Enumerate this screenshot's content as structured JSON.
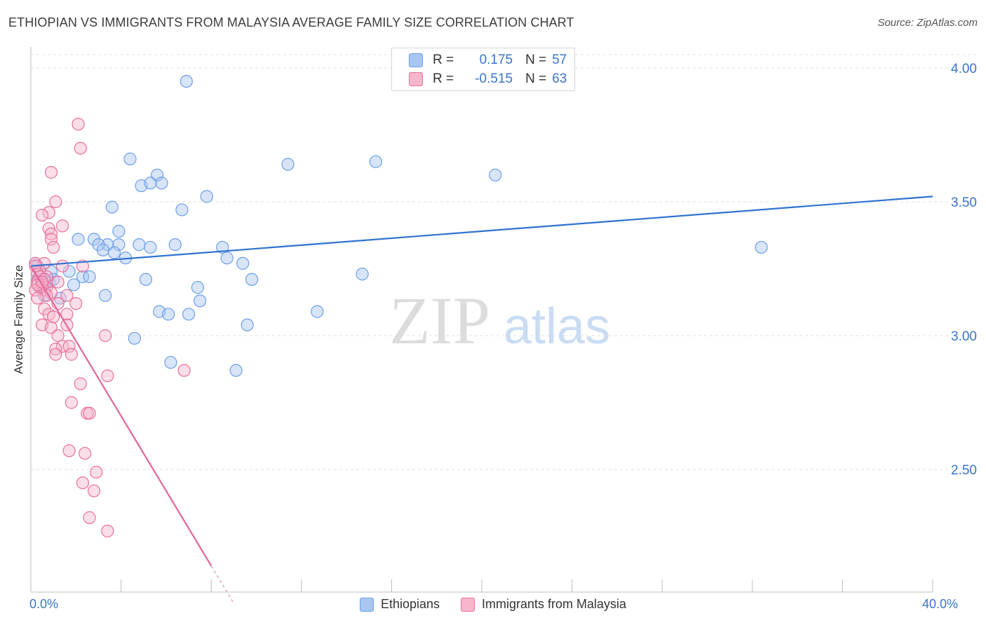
{
  "header": {
    "title": "ETHIOPIAN VS IMMIGRANTS FROM MALAYSIA AVERAGE FAMILY SIZE CORRELATION CHART",
    "source": "Source: ZipAtlas.com"
  },
  "watermark": {
    "zip": "ZIP",
    "atlas": "atlas"
  },
  "stats_box": {
    "rows": [
      {
        "r_label": "R =",
        "r_value": "0.175",
        "n_label": "N =",
        "n_value": "57",
        "color": "#6b9ee8"
      },
      {
        "r_label": "R =",
        "r_value": "-0.515",
        "n_label": "N =",
        "n_value": "63",
        "color": "#f08aaa"
      }
    ]
  },
  "chart_data": {
    "type": "scatter",
    "title": "ETHIOPIAN VS IMMIGRANTS FROM MALAYSIA AVERAGE FAMILY SIZE CORRELATION CHART",
    "xlabel": "",
    "ylabel": "Average Family Size",
    "xlim": [
      0,
      40
    ],
    "ylim": [
      2.0,
      4.1
    ],
    "x_tick_labels": [
      "0.0%",
      "40.0%"
    ],
    "y_ticks": [
      2.5,
      3.0,
      3.5,
      4.0
    ],
    "y_tick_labels": [
      "2.50",
      "3.00",
      "3.50",
      "4.00"
    ],
    "grid": true,
    "legend": "bottom",
    "series": [
      {
        "name": "Ethiopians",
        "color": "#6b9ee8",
        "fill": "#a9c6f2",
        "trend": {
          "x": [
            0.0,
            40.0
          ],
          "y": [
            3.26,
            3.52
          ]
        },
        "points": [
          [
            6.9,
            3.95
          ],
          [
            4.4,
            3.66
          ],
          [
            11.4,
            3.64
          ],
          [
            15.3,
            3.65
          ],
          [
            20.6,
            3.6
          ],
          [
            5.6,
            3.6
          ],
          [
            5.8,
            3.57
          ],
          [
            4.9,
            3.56
          ],
          [
            5.3,
            3.57
          ],
          [
            7.8,
            3.52
          ],
          [
            3.6,
            3.48
          ],
          [
            6.7,
            3.47
          ],
          [
            3.9,
            3.39
          ],
          [
            2.1,
            3.36
          ],
          [
            2.8,
            3.36
          ],
          [
            3.4,
            3.34
          ],
          [
            3.0,
            3.34
          ],
          [
            4.8,
            3.34
          ],
          [
            6.4,
            3.34
          ],
          [
            8.5,
            3.33
          ],
          [
            3.9,
            3.34
          ],
          [
            5.3,
            3.33
          ],
          [
            3.2,
            3.32
          ],
          [
            3.7,
            3.31
          ],
          [
            4.2,
            3.29
          ],
          [
            8.7,
            3.29
          ],
          [
            9.4,
            3.27
          ],
          [
            0.3,
            3.26
          ],
          [
            1.7,
            3.24
          ],
          [
            0.9,
            3.24
          ],
          [
            14.7,
            3.23
          ],
          [
            2.3,
            3.22
          ],
          [
            2.6,
            3.22
          ],
          [
            0.3,
            3.21
          ],
          [
            5.1,
            3.21
          ],
          [
            9.8,
            3.21
          ],
          [
            0.5,
            3.21
          ],
          [
            0.8,
            3.2
          ],
          [
            0.6,
            3.19
          ],
          [
            1.9,
            3.19
          ],
          [
            7.4,
            3.18
          ],
          [
            0.4,
            3.18
          ],
          [
            32.4,
            3.33
          ],
          [
            0.6,
            3.15
          ],
          [
            1.3,
            3.14
          ],
          [
            3.3,
            3.15
          ],
          [
            7.5,
            3.13
          ],
          [
            5.7,
            3.09
          ],
          [
            6.1,
            3.08
          ],
          [
            7.0,
            3.08
          ],
          [
            12.7,
            3.09
          ],
          [
            9.6,
            3.04
          ],
          [
            4.6,
            2.99
          ],
          [
            6.2,
            2.9
          ],
          [
            9.1,
            2.87
          ],
          [
            0.2,
            3.27
          ],
          [
            1.0,
            3.21
          ]
        ]
      },
      {
        "name": "Immigrants from Malaysia",
        "color": "#e8709a",
        "fill": "#f7b6cb",
        "trend": {
          "x": [
            0.0,
            8.0
          ],
          "y": [
            3.26,
            2.14
          ]
        },
        "trend_dashed": {
          "x": [
            8.0,
            9.0
          ],
          "y": [
            2.14,
            2.0
          ]
        },
        "points": [
          [
            2.1,
            3.79
          ],
          [
            2.2,
            3.7
          ],
          [
            0.9,
            3.61
          ],
          [
            1.1,
            3.5
          ],
          [
            0.8,
            3.46
          ],
          [
            0.5,
            3.45
          ],
          [
            1.4,
            3.41
          ],
          [
            0.8,
            3.4
          ],
          [
            0.9,
            3.38
          ],
          [
            0.9,
            3.36
          ],
          [
            1.0,
            3.33
          ],
          [
            0.2,
            3.27
          ],
          [
            0.6,
            3.27
          ],
          [
            1.4,
            3.26
          ],
          [
            2.3,
            3.26
          ],
          [
            0.4,
            3.24
          ],
          [
            0.3,
            3.23
          ],
          [
            0.7,
            3.22
          ],
          [
            0.4,
            3.22
          ],
          [
            0.6,
            3.21
          ],
          [
            1.2,
            3.2
          ],
          [
            0.3,
            3.2
          ],
          [
            0.5,
            3.19
          ],
          [
            0.7,
            3.18
          ],
          [
            0.4,
            3.18
          ],
          [
            0.2,
            3.17
          ],
          [
            0.6,
            3.17
          ],
          [
            0.9,
            3.16
          ],
          [
            0.7,
            3.15
          ],
          [
            0.3,
            3.14
          ],
          [
            1.6,
            3.15
          ],
          [
            2.0,
            3.12
          ],
          [
            1.2,
            3.12
          ],
          [
            0.6,
            3.1
          ],
          [
            0.8,
            3.08
          ],
          [
            1.6,
            3.08
          ],
          [
            1.0,
            3.07
          ],
          [
            0.5,
            3.04
          ],
          [
            0.9,
            3.03
          ],
          [
            1.6,
            3.04
          ],
          [
            1.2,
            3.0
          ],
          [
            3.3,
            3.0
          ],
          [
            1.4,
            2.96
          ],
          [
            1.1,
            2.95
          ],
          [
            1.7,
            2.96
          ],
          [
            1.8,
            2.93
          ],
          [
            1.1,
            2.93
          ],
          [
            6.8,
            2.87
          ],
          [
            3.4,
            2.85
          ],
          [
            2.2,
            2.82
          ],
          [
            1.8,
            2.75
          ],
          [
            2.5,
            2.71
          ],
          [
            2.6,
            2.71
          ],
          [
            1.7,
            2.57
          ],
          [
            2.4,
            2.56
          ],
          [
            2.9,
            2.49
          ],
          [
            2.3,
            2.45
          ],
          [
            2.8,
            2.42
          ],
          [
            2.6,
            2.32
          ],
          [
            3.4,
            2.27
          ],
          [
            0.2,
            3.26
          ],
          [
            0.3,
            3.19
          ],
          [
            0.5,
            3.2
          ]
        ]
      }
    ]
  }
}
